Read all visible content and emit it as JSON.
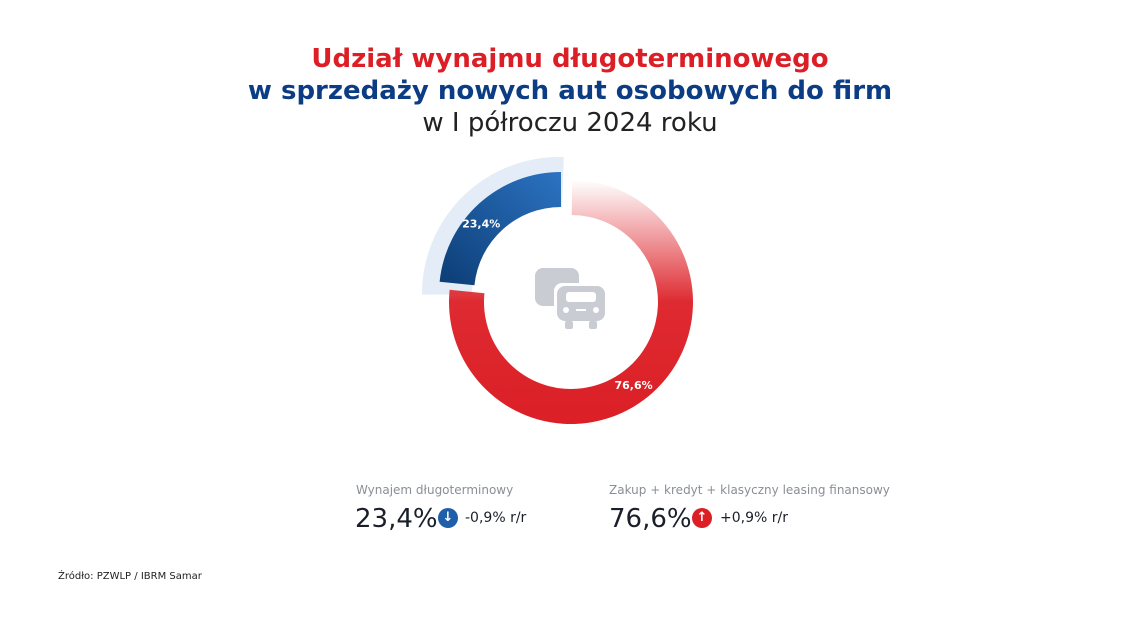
{
  "title": {
    "line1": "Udział wynajmu długoterminowego",
    "line2": "w sprzedaży nowych aut osobowych do firm",
    "line3": "w I półroczu 2024 roku"
  },
  "chart_data": {
    "type": "pie",
    "variant": "donut",
    "categories": [
      "Wynajem długoterminowy",
      "Zakup + kredyt + klasyczny leasing finansowy"
    ],
    "values": [
      23.4,
      76.6
    ],
    "data_labels": [
      "23,4%",
      "76,6%"
    ],
    "colors": [
      "#1f5ea8",
      "#dc1f26"
    ],
    "center_icon": "cars-icon"
  },
  "legend": [
    {
      "label": "Wynajem długoterminowy",
      "value": "23,4%",
      "change": "-0,9% r/r",
      "direction": "down",
      "color": "#1f5ea8"
    },
    {
      "label": "Zakup + kredyt + klasyczny leasing finansowy",
      "value": "76,6%",
      "change": "+0,9% r/r",
      "direction": "up",
      "color": "#dc1f26"
    }
  ],
  "source": "Źródło: PZWLP / IBRM Samar"
}
